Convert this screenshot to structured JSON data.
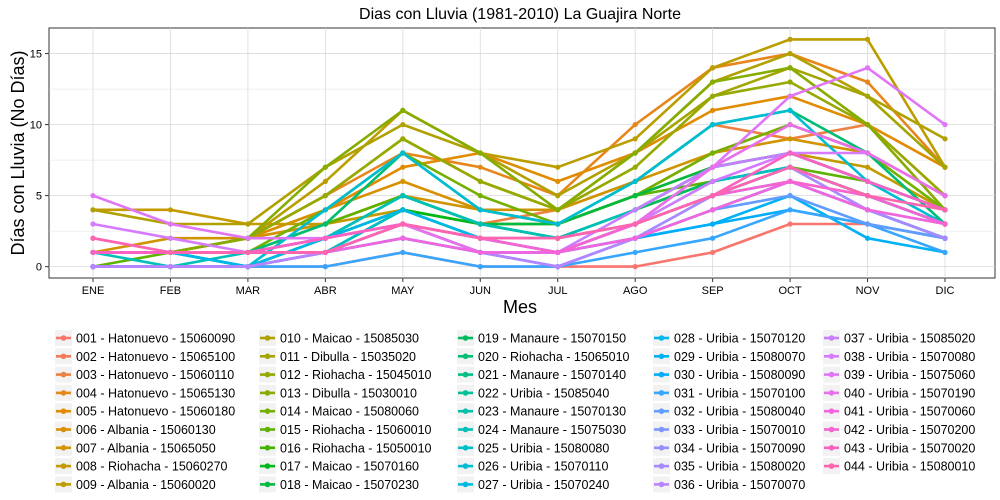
{
  "chart_data": {
    "type": "line",
    "title": "Dias con Lluvia (1981-2010)  La Guajira Norte",
    "xlabel": "Mes",
    "ylabel": "Días con Lluvia (No Días)",
    "categories": [
      "ENE",
      "FEB",
      "MAR",
      "ABR",
      "MAY",
      "JUN",
      "JUL",
      "AGO",
      "SEP",
      "OCT",
      "NOV",
      "DIC"
    ],
    "y_ticks": [
      0,
      5,
      10,
      15
    ],
    "ylim": [
      -0.8,
      16.8
    ],
    "grid": true,
    "legend_position": "bottom",
    "series": [
      {
        "name": "001 - Hatonuevo - 15060090",
        "color": "#F8766D",
        "values": [
          0,
          0,
          0,
          0,
          1,
          0,
          0,
          0,
          1,
          3,
          3,
          2
        ]
      },
      {
        "name": "002 - Hatonuevo - 15065100",
        "color": "#F37B59",
        "values": [
          1,
          1,
          1,
          1,
          2,
          1,
          1,
          2,
          4,
          6,
          5,
          3
        ]
      },
      {
        "name": "003 - Hatonuevo - 15060110",
        "color": "#ED8141",
        "values": [
          1,
          1,
          2,
          3,
          5,
          3,
          4,
          6,
          10,
          9,
          10,
          5
        ]
      },
      {
        "name": "004 - Hatonuevo - 15065130",
        "color": "#E7861B",
        "values": [
          1,
          1,
          2,
          5,
          8,
          7,
          5,
          10,
          14,
          15,
          13,
          7
        ]
      },
      {
        "name": "005 - Hatonuevo - 15060180",
        "color": "#E08B00",
        "values": [
          1,
          1,
          2,
          4,
          7,
          8,
          6,
          8,
          11,
          12,
          10,
          7
        ]
      },
      {
        "name": "006 - Albania - 15060130",
        "color": "#D89000",
        "values": [
          1,
          1,
          2,
          4,
          6,
          4,
          3,
          5,
          8,
          10,
          8,
          5
        ]
      },
      {
        "name": "007 - Albania - 15065050",
        "color": "#CF9400",
        "values": [
          1,
          2,
          2,
          3,
          5,
          4,
          4,
          6,
          8,
          9,
          8,
          5
        ]
      },
      {
        "name": "008 - Riohacha - 15060270",
        "color": "#C59900",
        "values": [
          4,
          4,
          3,
          3,
          4,
          3,
          3,
          5,
          7,
          8,
          7,
          4
        ]
      },
      {
        "name": "009 - Albania - 15060020",
        "color": "#BB9D00",
        "values": [
          1,
          1,
          2,
          6,
          11,
          8,
          7,
          9,
          14,
          16,
          16,
          7
        ]
      },
      {
        "name": "010 - Maicao - 15085030",
        "color": "#B0A100",
        "values": [
          4,
          3,
          3,
          7,
          10,
          8,
          5,
          8,
          13,
          15,
          12,
          9
        ]
      },
      {
        "name": "011 - Dibulla - 15035020",
        "color": "#A3A500",
        "values": [
          1,
          1,
          2,
          5,
          9,
          6,
          4,
          8,
          12,
          14,
          12,
          7
        ]
      },
      {
        "name": "012 - Riohacha - 15045010",
        "color": "#95A900",
        "values": [
          1,
          1,
          2,
          5,
          9,
          6,
          4,
          7,
          12,
          13,
          10,
          5
        ]
      },
      {
        "name": "013 - Dibulla - 15030010",
        "color": "#86AC00",
        "values": [
          1,
          1,
          2,
          7,
          11,
          8,
          4,
          8,
          13,
          14,
          10,
          4
        ]
      },
      {
        "name": "014 - Maicao - 15080060",
        "color": "#74B000",
        "values": [
          1,
          1,
          1,
          4,
          8,
          5,
          3,
          5,
          8,
          10,
          8,
          4
        ]
      },
      {
        "name": "015 - Riohacha - 15060010",
        "color": "#5EB300",
        "values": [
          0,
          1,
          1,
          3,
          5,
          3,
          3,
          5,
          6,
          7,
          6,
          4
        ]
      },
      {
        "name": "016 - Riohacha - 15050010",
        "color": "#3FB500",
        "values": [
          1,
          1,
          0,
          2,
          4,
          3,
          2,
          4,
          6,
          7,
          5,
          3
        ]
      },
      {
        "name": "017 - Maicao - 15070160",
        "color": "#00B81B",
        "values": [
          1,
          1,
          0,
          1,
          4,
          3,
          2,
          3,
          5,
          7,
          5,
          3
        ]
      },
      {
        "name": "018 - Maicao - 15070230",
        "color": "#00BA42",
        "values": [
          1,
          1,
          0,
          2,
          5,
          3,
          3,
          5,
          7,
          8,
          6,
          4
        ]
      },
      {
        "name": "019 - Manaure - 15070150",
        "color": "#00BC5C",
        "values": [
          1,
          1,
          1,
          1,
          4,
          2,
          2,
          4,
          6,
          7,
          5,
          3
        ]
      },
      {
        "name": "020 - Riohacha - 15065010",
        "color": "#00BD73",
        "values": [
          1,
          1,
          1,
          3,
          8,
          4,
          3,
          6,
          10,
          11,
          8,
          3
        ]
      },
      {
        "name": "021 - Manaure - 15070140",
        "color": "#00BF86",
        "values": [
          1,
          1,
          0,
          2,
          4,
          2,
          1,
          3,
          5,
          7,
          5,
          3
        ]
      },
      {
        "name": "022 - Uribia - 15085040",
        "color": "#00C098",
        "values": [
          1,
          1,
          1,
          2,
          5,
          3,
          2,
          4,
          7,
          8,
          6,
          4
        ]
      },
      {
        "name": "023 - Manaure - 15070130",
        "color": "#00C0A9",
        "values": [
          1,
          1,
          0,
          1,
          3,
          2,
          1,
          2,
          4,
          6,
          4,
          2
        ]
      },
      {
        "name": "024 - Manaure - 15075030",
        "color": "#00C0B8",
        "values": [
          1,
          0,
          1,
          2,
          5,
          3,
          2,
          4,
          7,
          8,
          6,
          4
        ]
      },
      {
        "name": "025 - Uribia - 15080080",
        "color": "#00BFC6",
        "values": [
          1,
          1,
          0,
          1,
          4,
          2,
          1,
          3,
          6,
          7,
          5,
          3
        ]
      },
      {
        "name": "026 - Uribia - 15070110",
        "color": "#00BDD3",
        "values": [
          1,
          1,
          0,
          4,
          8,
          4,
          3,
          6,
          10,
          11,
          6,
          3
        ]
      },
      {
        "name": "027 - Uribia - 15070240",
        "color": "#00BADF",
        "values": [
          0,
          0,
          0,
          1,
          3,
          1,
          1,
          2,
          4,
          6,
          4,
          2
        ]
      },
      {
        "name": "028 - Uribia - 15070120",
        "color": "#00B7E9",
        "values": [
          1,
          1,
          0,
          2,
          4,
          2,
          1,
          3,
          5,
          6,
          4,
          2
        ]
      },
      {
        "name": "029 - Uribia - 15080070",
        "color": "#00B2F3",
        "values": [
          0,
          0,
          0,
          1,
          2,
          1,
          0,
          2,
          3,
          5,
          2,
          1
        ]
      },
      {
        "name": "030 - Uribia - 15080090",
        "color": "#00ADFA",
        "values": [
          0,
          0,
          0,
          1,
          2,
          1,
          0,
          2,
          3,
          4,
          3,
          2
        ]
      },
      {
        "name": "031 - Uribia - 15070100",
        "color": "#37A6FF",
        "values": [
          0,
          0,
          0,
          0,
          1,
          0,
          0,
          1,
          2,
          4,
          3,
          1
        ]
      },
      {
        "name": "032 - Uribia - 15080040",
        "color": "#619CFF",
        "values": [
          0,
          0,
          0,
          1,
          2,
          1,
          1,
          2,
          4,
          5,
          3,
          2
        ]
      },
      {
        "name": "033 - Uribia - 15070010",
        "color": "#7E96FF",
        "values": [
          0,
          0,
          0,
          1,
          3,
          1,
          1,
          2,
          5,
          6,
          4,
          2
        ]
      },
      {
        "name": "034 - Uribia - 15070090",
        "color": "#958FFF",
        "values": [
          1,
          1,
          1,
          1,
          3,
          2,
          1,
          3,
          5,
          7,
          5,
          3
        ]
      },
      {
        "name": "035 - Uribia - 15080020",
        "color": "#A989FF",
        "values": [
          0,
          0,
          0,
          1,
          2,
          1,
          1,
          2,
          5,
          7,
          4,
          2
        ]
      },
      {
        "name": "036 - Uribia - 15070070",
        "color": "#BA83FF",
        "values": [
          0,
          0,
          0,
          1,
          3,
          1,
          0,
          2,
          4,
          6,
          4,
          3
        ]
      },
      {
        "name": "037 - Uribia - 15085020",
        "color": "#C97DFF",
        "values": [
          2,
          1,
          1,
          2,
          3,
          2,
          1,
          4,
          7,
          8,
          6,
          4
        ]
      },
      {
        "name": "038 - Uribia - 15070080",
        "color": "#D67AFF",
        "values": [
          3,
          2,
          1,
          2,
          3,
          2,
          2,
          3,
          6,
          8,
          8,
          5
        ]
      },
      {
        "name": "039 - Uribia - 15075060",
        "color": "#E076F6",
        "values": [
          5,
          3,
          2,
          2,
          3,
          2,
          1,
          3,
          7,
          12,
          14,
          10
        ]
      },
      {
        "name": "040 - Uribia - 15070190",
        "color": "#E96FEB",
        "values": [
          1,
          1,
          1,
          2,
          3,
          1,
          1,
          3,
          7,
          10,
          8,
          5
        ]
      },
      {
        "name": "041 - Uribia - 15070060",
        "color": "#F166DF",
        "values": [
          1,
          1,
          1,
          1,
          2,
          1,
          1,
          2,
          4,
          6,
          4,
          3
        ]
      },
      {
        "name": "042 - Uribia - 15070200",
        "color": "#F763D0",
        "values": [
          1,
          1,
          1,
          1,
          3,
          2,
          1,
          3,
          5,
          6,
          5,
          3
        ]
      },
      {
        "name": "043 - Uribia - 15070020",
        "color": "#FB61C0",
        "values": [
          1,
          1,
          1,
          2,
          3,
          2,
          2,
          3,
          5,
          8,
          6,
          4
        ]
      },
      {
        "name": "044 - Uribia - 15080010",
        "color": "#FF65AE",
        "values": [
          2,
          1,
          1,
          1,
          3,
          2,
          2,
          3,
          5,
          7,
          5,
          4
        ]
      }
    ]
  }
}
